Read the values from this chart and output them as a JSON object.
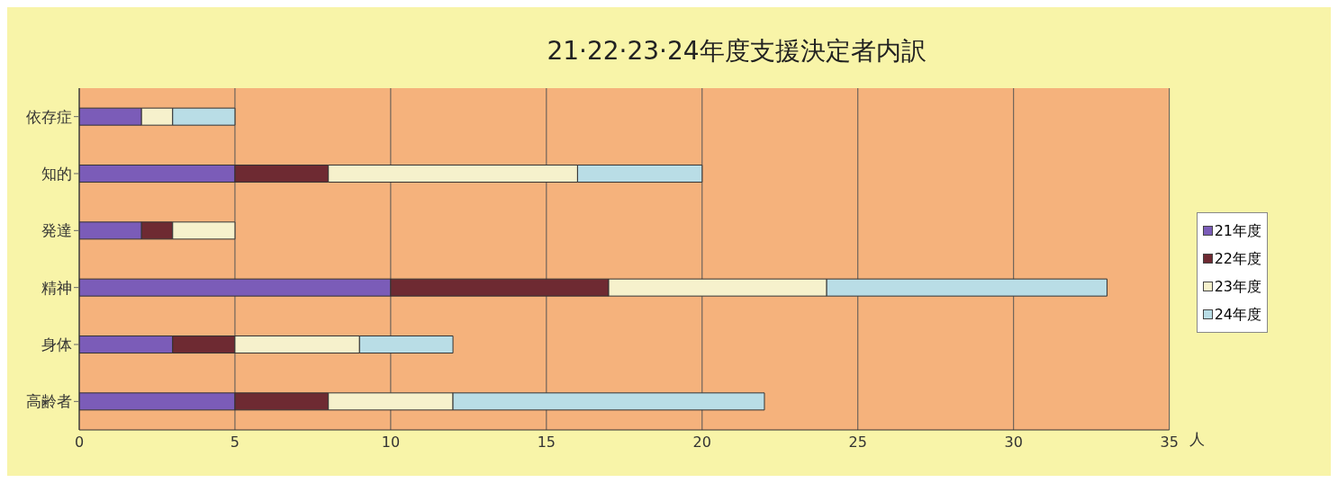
{
  "chart_data": {
    "type": "bar",
    "orientation": "horizontal",
    "stacked": true,
    "title": "21·22·23·24年度支援決定者内訳",
    "xlabel": "人",
    "categories": [
      "依存症",
      "知的",
      "発達",
      "精神",
      "身体",
      "高齢者"
    ],
    "series": [
      {
        "name": "21年度",
        "color": "#7b5cb8",
        "values": [
          2,
          5,
          2,
          10,
          3,
          5
        ]
      },
      {
        "name": "22年度",
        "color": "#6e2a32",
        "values": [
          0,
          3,
          1,
          7,
          2,
          3
        ]
      },
      {
        "name": "23年度",
        "color": "#f6f1cc",
        "values": [
          1,
          8,
          2,
          7,
          4,
          4
        ]
      },
      {
        "name": "24年度",
        "color": "#b9dde6",
        "values": [
          2,
          4,
          0,
          9,
          3,
          10
        ]
      }
    ],
    "xlim": [
      0,
      35
    ],
    "xticks": [
      0,
      5,
      10,
      15,
      20,
      25,
      30,
      35
    ],
    "grid": "x",
    "legend": "right"
  }
}
